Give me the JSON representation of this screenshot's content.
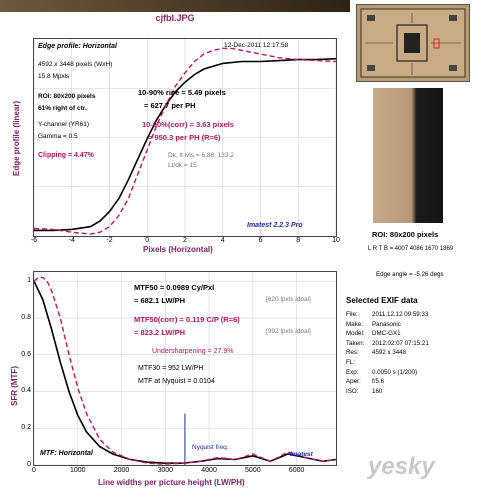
{
  "title": "cjfbl.JPG",
  "edge": {
    "heading": "Edge profile: Horizontal",
    "timestamp": "12-Dec-2011 12:17:58",
    "dims": "4592 x 3448 pixels (WxH)",
    "mpxls": "15.8 Mpxls",
    "roi": "ROI: 80x200 pixels",
    "roi_pos": "61% right of ctr.",
    "channel": "Y-channel  (YR61)",
    "gamma": "Gamma = 0.5",
    "clipping": "Clipping =  4.47%",
    "rise_label": "10-90% rise = 5.49 pixels",
    "rise_ph": "= 627.7 per PH",
    "corr_label": "10-90%(corr) = 3.63 pixels",
    "corr_ph": "= 950.3 per PH  (R=6)",
    "dk_lt": "Dk, lt lvls = 6.88, 133.2",
    "ltdk": "Lt/dk = 15",
    "brand": "Imatest 2.2.3 Pro",
    "ylabel": "Edge profile (linear)",
    "xlabel": "Pixels (Horizontal)"
  },
  "mtf": {
    "mtf50": "MTF50 = 0.0989 Cy/Pxl",
    "mtf50_lw": "= 682.1 LW/PH",
    "ideal1": "[620 lpxls ideal]",
    "mtf50corr": "MTF50(corr) = 0.119  C/P  (R=6)",
    "mtf50corr_lw": "= 823.2 LW/PH",
    "ideal2": "[992 lpxls ideal]",
    "undersharp": "Undersharpening = 27.9%",
    "mtf30": "MTF30 = 952 LW/PH",
    "nyquist_val": "MTF at Nyquist = 0.0104",
    "nyquist_label": "Nyquist freq.",
    "heading": "MTF: Horizontal",
    "ylabel": "SFR (MTF)",
    "xlabel": "Line widths per picture height (LW/PH)",
    "brand": "Imatest"
  },
  "side": {
    "roi_caption": "ROI: 80x200 pixels",
    "lrtb": "L R T B = 4007 4086  1670 1869",
    "edge_angle": "Edge angle = -5.26 degs",
    "exif_title": "Selected EXIF data",
    "exif": [
      {
        "k": "File:",
        "v": "2011.12.12 09:59:33"
      },
      {
        "k": "Make:",
        "v": "Panasonic"
      },
      {
        "k": "Model:",
        "v": "DMC-GX1"
      },
      {
        "k": "Taken:",
        "v": "2012:02:07 07:15:21"
      },
      {
        "k": "Res:",
        "v": "4592 x 3448"
      },
      {
        "k": "FL:",
        "v": ""
      },
      {
        "k": "Exp:",
        "v": "0.0050 s  (1/200)"
      },
      {
        "k": "Aper:",
        "v": "f/5.6"
      },
      {
        "k": "ISO:",
        "v": "160"
      }
    ],
    "watermark": "yesky"
  },
  "chart_data": [
    {
      "type": "line",
      "title": "Edge profile: Horizontal",
      "xlabel": "Pixels (Horizontal)",
      "ylabel": "Edge profile (linear)",
      "xlim": [
        -6,
        10
      ],
      "xticks": [
        -6,
        -4,
        -2,
        0,
        2,
        4,
        6,
        8,
        10
      ],
      "grid": true,
      "series": [
        {
          "x": [
            -6,
            -5,
            -4,
            -3,
            -2.5,
            -2,
            -1.5,
            -1,
            -0.5,
            0,
            0.5,
            1,
            1.5,
            2,
            2.5,
            3,
            4,
            5,
            6,
            7,
            8,
            9,
            10
          ],
          "values": [
            0.03,
            0.03,
            0.035,
            0.05,
            0.08,
            0.13,
            0.2,
            0.3,
            0.41,
            0.52,
            0.62,
            0.7,
            0.77,
            0.82,
            0.86,
            0.89,
            0.92,
            0.93,
            0.93,
            0.935,
            0.94,
            0.94,
            0.945
          ]
        },
        {
          "x": [
            -6,
            -5,
            -4,
            -3,
            -2.5,
            -2,
            -1.5,
            -1,
            -0.5,
            0,
            0.5,
            1,
            1.5,
            2,
            2.5,
            3,
            3.5,
            4,
            4.5,
            5,
            6,
            7,
            8,
            9,
            10
          ],
          "values": [
            0.04,
            0.035,
            0.02,
            0.01,
            0.02,
            0.05,
            0.11,
            0.2,
            0.33,
            0.46,
            0.59,
            0.7,
            0.8,
            0.87,
            0.93,
            0.97,
            0.99,
            1.0,
            1.0,
            0.99,
            0.97,
            0.95,
            0.94,
            0.935,
            0.93
          ]
        }
      ]
    },
    {
      "type": "line",
      "title": "MTF: Horizontal",
      "xlabel": "Line widths per picture height (LW/PH)",
      "ylabel": "SFR (MTF)",
      "xlim": [
        0,
        6900
      ],
      "ylim": [
        0,
        1.05
      ],
      "xticks": [
        0,
        1000,
        2000,
        3000,
        4000,
        5000,
        6000
      ],
      "yticks": [
        0,
        0.2,
        0.4,
        0.6,
        0.8,
        1
      ],
      "nyquist_x": 3448,
      "series": [
        {
          "x": [
            0,
            200,
            400,
            600,
            800,
            1000,
            1200,
            1500,
            1800,
            2200,
            2600,
            3000,
            3400,
            3800,
            4200,
            4600,
            5000,
            5400,
            5800,
            6200,
            6600,
            6900
          ],
          "values": [
            1.0,
            0.9,
            0.74,
            0.56,
            0.4,
            0.27,
            0.18,
            0.1,
            0.06,
            0.03,
            0.015,
            0.01,
            0.01,
            0.02,
            0.035,
            0.03,
            0.05,
            0.02,
            0.06,
            0.04,
            0.02,
            0.03
          ]
        },
        {
          "x": [
            0,
            100,
            200,
            300,
            400,
            600,
            800,
            1000,
            1200,
            1500,
            1800,
            2200,
            2600,
            3000,
            3400,
            3800,
            4200,
            4600,
            5000,
            5400,
            5800,
            6200,
            6600,
            6900
          ],
          "values": [
            1.0,
            1.02,
            1.02,
            1.0,
            0.95,
            0.8,
            0.6,
            0.42,
            0.28,
            0.14,
            0.07,
            0.03,
            0.01,
            0.005,
            0.01,
            0.02,
            0.04,
            0.03,
            0.06,
            0.02,
            0.07,
            0.04,
            0.02,
            0.03
          ]
        }
      ]
    }
  ]
}
